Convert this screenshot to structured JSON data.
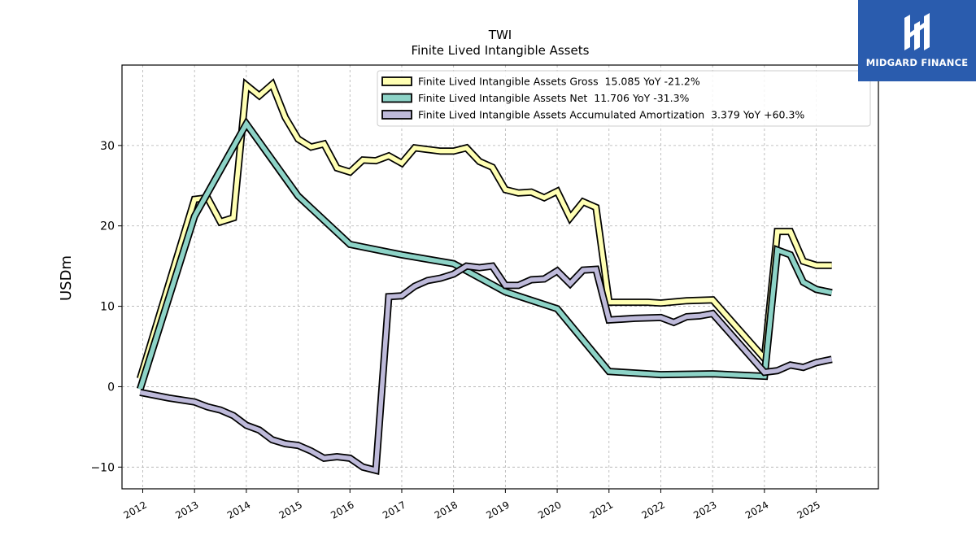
{
  "logo": {
    "name": "MIDGARD FINANCE",
    "background": "#2a5cae"
  },
  "chart_data": {
    "type": "line",
    "title": "TWI",
    "subtitle": "Finite Lived Intangible Assets",
    "ylabel": "USDm",
    "xlabel": "",
    "ylim": [
      -12.7,
      40
    ],
    "xlim": [
      2011.6,
      2026.2
    ],
    "yticks": [
      -10,
      0,
      10,
      20,
      30
    ],
    "xticks": [
      "2012",
      "2013",
      "2014",
      "2015",
      "2016",
      "2017",
      "2018",
      "2019",
      "2020",
      "2021",
      "2022",
      "2023",
      "2024",
      "2025"
    ],
    "grid": true,
    "legend_position": "top-right",
    "series": [
      {
        "name": "Finite Lived Intangible Assets Gross  15.085 YoY -21.2%",
        "color": "#ffffb3",
        "points": [
          [
            2011.95,
            1.0
          ],
          [
            2013.0,
            23.3
          ],
          [
            2013.25,
            23.5
          ],
          [
            2013.5,
            20.5
          ],
          [
            2013.75,
            21.0
          ],
          [
            2014.0,
            37.5
          ],
          [
            2014.25,
            36.2
          ],
          [
            2014.5,
            37.6
          ],
          [
            2014.75,
            33.5
          ],
          [
            2015.0,
            30.8
          ],
          [
            2015.25,
            29.8
          ],
          [
            2015.5,
            30.2
          ],
          [
            2015.75,
            27.2
          ],
          [
            2016.0,
            26.7
          ],
          [
            2016.25,
            28.2
          ],
          [
            2016.5,
            28.1
          ],
          [
            2016.75,
            28.7
          ],
          [
            2017.0,
            27.8
          ],
          [
            2017.25,
            29.7
          ],
          [
            2017.5,
            29.5
          ],
          [
            2017.75,
            29.3
          ],
          [
            2018.0,
            29.3
          ],
          [
            2018.25,
            29.7
          ],
          [
            2018.5,
            28.0
          ],
          [
            2018.75,
            27.3
          ],
          [
            2019.0,
            24.5
          ],
          [
            2019.25,
            24.1
          ],
          [
            2019.5,
            24.2
          ],
          [
            2019.75,
            23.5
          ],
          [
            2020.0,
            24.3
          ],
          [
            2020.25,
            21.0
          ],
          [
            2020.5,
            23.0
          ],
          [
            2020.75,
            22.3
          ],
          [
            2021.0,
            10.5
          ],
          [
            2021.25,
            10.5
          ],
          [
            2021.5,
            10.5
          ],
          [
            2021.75,
            10.5
          ],
          [
            2022.0,
            10.4
          ],
          [
            2022.5,
            10.7
          ],
          [
            2023.0,
            10.8
          ],
          [
            2024.0,
            3.5
          ],
          [
            2024.25,
            19.3
          ],
          [
            2024.5,
            19.3
          ],
          [
            2024.75,
            15.6
          ],
          [
            2025.0,
            15.1
          ],
          [
            2025.3,
            15.1
          ]
        ]
      },
      {
        "name": "Finite Lived Intangible Assets Net  11.706 YoY -31.3%",
        "color": "#8dd3c7",
        "points": [
          [
            2011.95,
            -0.3
          ],
          [
            2013.0,
            21.2
          ],
          [
            2014.0,
            32.7
          ],
          [
            2015.0,
            23.7
          ],
          [
            2016.0,
            17.7
          ],
          [
            2017.0,
            16.4
          ],
          [
            2018.0,
            15.3
          ],
          [
            2019.0,
            11.8
          ],
          [
            2020.0,
            9.7
          ],
          [
            2021.0,
            1.9
          ],
          [
            2022.0,
            1.5
          ],
          [
            2023.0,
            1.6
          ],
          [
            2024.0,
            1.3
          ],
          [
            2024.25,
            17.0
          ],
          [
            2024.5,
            16.4
          ],
          [
            2024.75,
            13.0
          ],
          [
            2025.0,
            12.1
          ],
          [
            2025.3,
            11.7
          ]
        ]
      },
      {
        "name": "Finite Lived Intangible Assets Accumulated Amortization  3.379 YoY +60.3%",
        "color": "#bebada",
        "points": [
          [
            2011.95,
            -0.7
          ],
          [
            2012.5,
            -1.4
          ],
          [
            2013.0,
            -1.9
          ],
          [
            2013.25,
            -2.5
          ],
          [
            2013.5,
            -2.9
          ],
          [
            2013.75,
            -3.6
          ],
          [
            2014.0,
            -4.8
          ],
          [
            2014.25,
            -5.4
          ],
          [
            2014.5,
            -6.6
          ],
          [
            2014.75,
            -7.1
          ],
          [
            2015.0,
            -7.3
          ],
          [
            2015.25,
            -8.0
          ],
          [
            2015.5,
            -8.9
          ],
          [
            2015.75,
            -8.7
          ],
          [
            2016.0,
            -8.9
          ],
          [
            2016.25,
            -10.0
          ],
          [
            2016.5,
            -10.4
          ],
          [
            2016.75,
            11.2
          ],
          [
            2017.0,
            11.3
          ],
          [
            2017.25,
            12.5
          ],
          [
            2017.5,
            13.2
          ],
          [
            2017.75,
            13.5
          ],
          [
            2018.0,
            14.0
          ],
          [
            2018.25,
            15.0
          ],
          [
            2018.5,
            14.8
          ],
          [
            2018.75,
            15.0
          ],
          [
            2019.0,
            12.6
          ],
          [
            2019.25,
            12.6
          ],
          [
            2019.5,
            13.3
          ],
          [
            2019.75,
            13.4
          ],
          [
            2020.0,
            14.4
          ],
          [
            2020.25,
            12.8
          ],
          [
            2020.5,
            14.5
          ],
          [
            2020.75,
            14.6
          ],
          [
            2021.0,
            8.3
          ],
          [
            2021.5,
            8.5
          ],
          [
            2022.0,
            8.6
          ],
          [
            2022.25,
            8.0
          ],
          [
            2022.5,
            8.7
          ],
          [
            2022.75,
            8.8
          ],
          [
            2023.0,
            9.1
          ],
          [
            2024.0,
            1.8
          ],
          [
            2024.25,
            2.0
          ],
          [
            2024.5,
            2.7
          ],
          [
            2024.75,
            2.4
          ],
          [
            2025.0,
            3.0
          ],
          [
            2025.3,
            3.4
          ]
        ]
      }
    ]
  }
}
